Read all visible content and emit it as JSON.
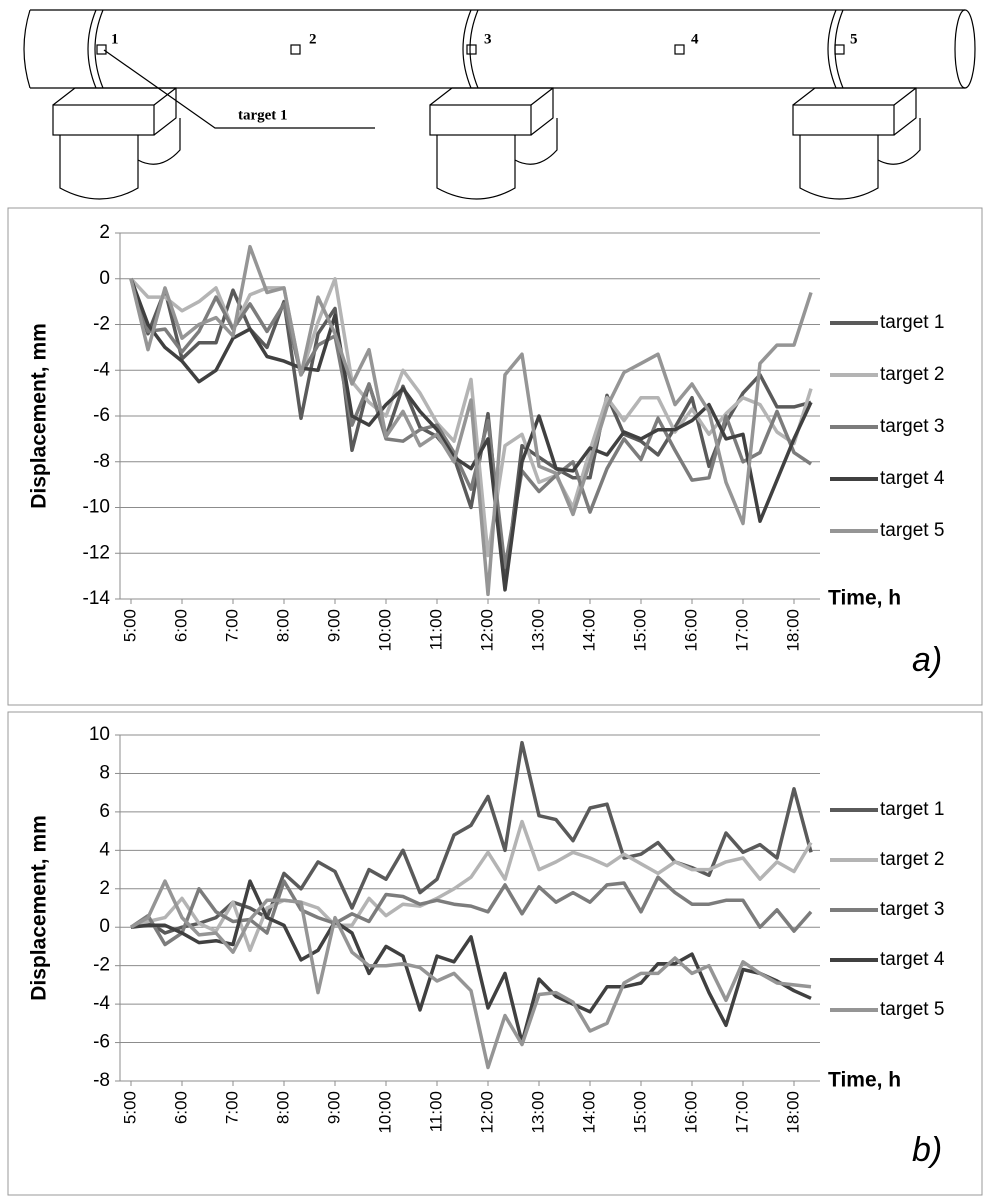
{
  "diagram": {
    "targets": [
      "1",
      "2",
      "3",
      "4",
      "5"
    ],
    "callout": "target 1"
  },
  "chart_data": [
    {
      "type": "line",
      "y_label": "Displacement, mm",
      "x_label": "Time, h",
      "annotation": "a)",
      "grid": true,
      "legend": "right",
      "categories": [
        "5:00",
        null,
        null,
        "6:00",
        null,
        null,
        "7:00",
        null,
        null,
        "8:00",
        null,
        null,
        "9:00",
        null,
        null,
        "10:00",
        null,
        null,
        "11:00",
        null,
        null,
        "12:00",
        null,
        null,
        "13:00",
        null,
        null,
        "14:00",
        null,
        null,
        "15:00",
        null,
        null,
        "16:00",
        null,
        null,
        "17:00",
        null,
        null,
        "18:00",
        null
      ],
      "ylim": [
        -14,
        2
      ],
      "yticks": [
        -14,
        -12,
        -10,
        -8,
        -6,
        -4,
        -2,
        0,
        2
      ],
      "series": [
        {
          "name": "target 1",
          "color": "#5a5a5a",
          "values": [
            0,
            -2.4,
            -0.5,
            -3.5,
            -2.8,
            -2.8,
            -0.5,
            -2.2,
            -3.0,
            -1.0,
            -6.1,
            -2.4,
            -1.3,
            -7.5,
            -4.6,
            -6.9,
            -4.7,
            -6.5,
            -6.9,
            -7.8,
            -10.0,
            -5.9,
            -13.4,
            -7.3,
            -7.8,
            -8.3,
            -8.7,
            -8.7,
            -5.1,
            -6.8,
            -7.1,
            -7.7,
            -6.5,
            -5.2,
            -8.2,
            -6.3,
            -5.0,
            -4.2,
            -5.6,
            -5.6,
            -5.4
          ]
        },
        {
          "name": "target 2",
          "color": "#b4b4b4",
          "values": [
            0,
            -0.8,
            -0.8,
            -1.4,
            -1.0,
            -0.4,
            -2.2,
            -0.7,
            -0.4,
            -0.4,
            -4.2,
            -1.9,
            0,
            -4.5,
            -5.4,
            -6.0,
            -4.0,
            -5.0,
            -6.3,
            -7.1,
            -4.4,
            -12.1,
            -7.3,
            -6.8,
            -8.9,
            -8.6,
            -10.0,
            -7.5,
            -5.2,
            -6.2,
            -5.2,
            -5.2,
            -6.7,
            -5.7,
            -6.8,
            -5.9,
            -5.2,
            -5.5,
            -6.7,
            -7.2,
            -4.8
          ]
        },
        {
          "name": "target 3",
          "color": "#7c7c7c",
          "values": [
            0,
            -2.3,
            -2.2,
            -3.2,
            -2.3,
            -0.8,
            -2.2,
            -1.1,
            -2.3,
            -1.1,
            -4.2,
            -2.9,
            -2.5,
            -6.4,
            -4.6,
            -7.0,
            -7.1,
            -6.6,
            -6.4,
            -7.6,
            -9.2,
            -6.2,
            -12.6,
            -8.4,
            -9.3,
            -8.6,
            -8.0,
            -10.2,
            -8.3,
            -7.0,
            -7.9,
            -6.1,
            -7.5,
            -8.8,
            -8.7,
            -6.0,
            -8.0,
            -7.6,
            -5.8,
            -7.6,
            -8.1
          ]
        },
        {
          "name": "target 4",
          "color": "#404040",
          "values": [
            0,
            -2.0,
            -3.0,
            -3.6,
            -4.5,
            -4.0,
            -2.6,
            -2.2,
            -3.4,
            -3.6,
            -3.9,
            -4.0,
            -1.6,
            -6.0,
            -6.4,
            -5.5,
            -4.8,
            -5.8,
            -6.6,
            -7.8,
            -8.3,
            -7.0,
            -13.6,
            -8.0,
            -6.0,
            -8.3,
            -8.4,
            -7.4,
            -7.7,
            -6.7,
            -7.0,
            -6.6,
            -6.6,
            -6.2,
            -5.5,
            -7.0,
            -6.8,
            -10.6,
            -8.8,
            -7.0,
            -5.4
          ]
        },
        {
          "name": "target 5",
          "color": "#959595",
          "values": [
            0,
            -3.1,
            -0.4,
            -2.6,
            -2.0,
            -1.7,
            -2.5,
            1.4,
            -0.6,
            -0.4,
            -4.2,
            -0.8,
            -2.4,
            -4.6,
            -3.1,
            -6.9,
            -5.8,
            -7.3,
            -6.8,
            -8.0,
            -5.3,
            -13.8,
            -4.2,
            -3.3,
            -8.2,
            -8.5,
            -10.3,
            -8.0,
            -5.6,
            -4.1,
            -3.7,
            -3.3,
            -5.5,
            -4.6,
            -5.8,
            -8.9,
            -10.7,
            -3.7,
            -2.9,
            -2.9,
            -0.6
          ]
        }
      ]
    },
    {
      "type": "line",
      "y_label": "Displacement, mm",
      "x_label": "Time, h",
      "annotation": "b)",
      "grid": true,
      "legend": "right",
      "categories": [
        "5:00",
        null,
        null,
        "6:00",
        null,
        null,
        "7:00",
        null,
        null,
        "8:00",
        null,
        null,
        "9:00",
        null,
        null,
        "10:00",
        null,
        null,
        "11:00",
        null,
        null,
        "12:00",
        null,
        null,
        "13:00",
        null,
        null,
        "14:00",
        null,
        null,
        "15:00",
        null,
        null,
        "16:00",
        null,
        null,
        "17:00",
        null,
        null,
        "18:00",
        null
      ],
      "ylim": [
        -8,
        10
      ],
      "yticks": [
        -8,
        -6,
        -4,
        -2,
        0,
        2,
        4,
        6,
        8,
        10
      ],
      "series": [
        {
          "name": "target 1",
          "color": "#5a5a5a",
          "values": [
            0,
            0.3,
            -0.3,
            0,
            0.2,
            0.5,
            1.3,
            1.0,
            0.5,
            2.8,
            2.0,
            3.4,
            2.9,
            1.0,
            3.0,
            2.5,
            4.0,
            1.8,
            2.5,
            4.8,
            5.3,
            6.8,
            4.0,
            9.6,
            5.8,
            5.6,
            4.5,
            6.2,
            6.4,
            3.6,
            3.8,
            4.4,
            3.4,
            3.1,
            2.7,
            4.9,
            3.9,
            4.3,
            3.6,
            7.2,
            3.9
          ]
        },
        {
          "name": "target 2",
          "color": "#b4b4b4",
          "values": [
            0,
            0.3,
            0.5,
            1.5,
            0.2,
            -0.2,
            1.3,
            -1.2,
            1.0,
            1.4,
            1.3,
            1.0,
            0.1,
            0.1,
            1.5,
            0.6,
            1.2,
            1.1,
            1.5,
            2.0,
            2.6,
            3.9,
            2.5,
            5.5,
            3.0,
            3.4,
            3.9,
            3.6,
            3.2,
            3.8,
            3.3,
            2.8,
            3.4,
            3.0,
            3.0,
            3.4,
            3.6,
            2.5,
            3.4,
            2.9,
            4.4
          ]
        },
        {
          "name": "target 3",
          "color": "#7c7c7c",
          "values": [
            0,
            0.6,
            -0.9,
            -0.3,
            2.0,
            0.8,
            0.3,
            0.4,
            -0.3,
            2.4,
            0.9,
            0.5,
            0.2,
            0.7,
            0.3,
            1.7,
            1.6,
            1.2,
            1.4,
            1.2,
            1.1,
            0.8,
            2.2,
            0.7,
            2.1,
            1.3,
            1.8,
            1.3,
            2.2,
            2.3,
            0.8,
            2.6,
            1.8,
            1.2,
            1.2,
            1.4,
            1.4,
            0,
            0.9,
            -0.2,
            0.8
          ]
        },
        {
          "name": "target 4",
          "color": "#404040",
          "values": [
            0,
            0.1,
            0.1,
            -0.3,
            -0.8,
            -0.7,
            -0.9,
            2.4,
            0.5,
            0.1,
            -1.7,
            -1.2,
            0.3,
            -0.3,
            -2.4,
            -1.0,
            -1.5,
            -4.3,
            -1.5,
            -1.8,
            -0.5,
            -4.2,
            -2.4,
            -6.0,
            -2.7,
            -3.6,
            -4.0,
            -4.4,
            -3.1,
            -3.1,
            -2.9,
            -1.9,
            -1.9,
            -1.4,
            -3.4,
            -5.1,
            -2.2,
            -2.4,
            -2.8,
            -3.3,
            -3.7
          ]
        },
        {
          "name": "target 5",
          "color": "#959595",
          "values": [
            0,
            0.5,
            2.4,
            0.5,
            -0.4,
            -0.3,
            -1.3,
            0.4,
            1.4,
            1.4,
            1.3,
            -3.4,
            0.5,
            -1.3,
            -2.0,
            -2.0,
            -1.9,
            -2.1,
            -2.8,
            -2.4,
            -3.3,
            -7.3,
            -4.6,
            -6.1,
            -3.5,
            -3.4,
            -3.9,
            -5.4,
            -5.0,
            -2.9,
            -2.4,
            -2.4,
            -1.6,
            -2.4,
            -2.0,
            -3.8,
            -1.8,
            -2.4,
            -2.9,
            -3.0,
            -3.1
          ]
        }
      ]
    }
  ]
}
